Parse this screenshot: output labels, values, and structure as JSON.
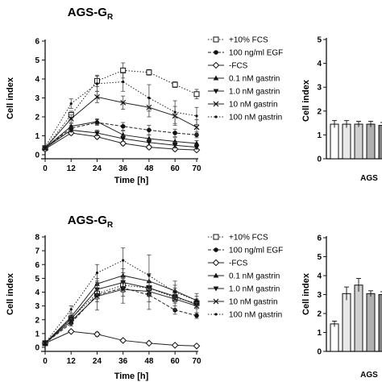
{
  "chart_data": [
    {
      "type": "line",
      "title": "AGS-G",
      "title_sub": "R",
      "xlabel": "Time [h]",
      "ylabel": "Cell index",
      "x": [
        0,
        12,
        24,
        36,
        48,
        60,
        70
      ],
      "xticks": [
        "0",
        "12",
        "24",
        "36",
        "48",
        "60",
        "70"
      ],
      "xlim": [
        0,
        70
      ],
      "ylim": [
        0,
        6
      ],
      "yticks": [
        "0",
        "1",
        "2",
        "3",
        "4",
        "5",
        "6"
      ],
      "legend_position": "top-right",
      "series": [
        {
          "name": "+10% FCS",
          "marker": "square-open",
          "line": "dotted",
          "values": [
            0.35,
            2.1,
            3.9,
            4.45,
            4.35,
            3.7,
            3.2
          ],
          "err": [
            0.05,
            0.2,
            0.3,
            0.4,
            0.15,
            0.15,
            0.25
          ]
        },
        {
          "name": "100 ng/ml EGF",
          "marker": "circle",
          "line": "dashed",
          "values": [
            0.35,
            1.4,
            1.7,
            1.5,
            1.3,
            1.15,
            1.05
          ],
          "err": [
            0.05,
            0.15,
            0.15,
            0.2,
            0.25,
            0.2,
            0.15
          ]
        },
        {
          "name": "-FCS",
          "marker": "diamond-open",
          "line": "solid",
          "values": [
            0.3,
            1.15,
            0.95,
            0.6,
            0.4,
            0.3,
            0.25
          ],
          "err": [
            0.05,
            0.1,
            0.1,
            0.1,
            0.1,
            0.1,
            0.05
          ]
        },
        {
          "name": "0.1 nM gastrin",
          "marker": "triangle-up",
          "line": "solid",
          "values": [
            0.35,
            1.5,
            1.75,
            1.05,
            0.85,
            0.7,
            0.6
          ],
          "err": [
            0.05,
            0.15,
            0.15,
            0.2,
            0.2,
            0.2,
            0.15
          ]
        },
        {
          "name": "1.0 nM gastrin",
          "marker": "triangle-down",
          "line": "solid",
          "values": [
            0.35,
            1.3,
            1.15,
            0.85,
            0.65,
            0.5,
            0.4
          ],
          "err": [
            0.05,
            0.1,
            0.15,
            0.15,
            0.15,
            0.15,
            0.1
          ]
        },
        {
          "name": "10 nM gastrin",
          "marker": "x",
          "line": "solid",
          "values": [
            0.35,
            1.9,
            3.05,
            2.75,
            2.5,
            2.05,
            1.45
          ],
          "err": [
            0.05,
            0.2,
            0.3,
            0.35,
            0.5,
            0.5,
            0.4
          ]
        },
        {
          "name": "100 nM gastrin",
          "marker": "dot",
          "line": "dotted",
          "values": [
            0.4,
            2.7,
            3.75,
            3.85,
            3.0,
            2.25,
            2.05
          ],
          "err": [
            0.05,
            0.25,
            0.4,
            0.5,
            0.7,
            0.6,
            0.45
          ]
        }
      ]
    },
    {
      "type": "bar",
      "title": "",
      "xlabel": "AGS",
      "ylabel": "Cell index",
      "ylim": [
        0,
        5
      ],
      "yticks": [
        "0",
        "1",
        "2",
        "3",
        "4",
        "5"
      ],
      "values": [
        1.45,
        1.45,
        1.45,
        1.45,
        1.4
      ],
      "err": [
        0.15,
        0.15,
        0.12,
        0.12,
        0.12
      ],
      "fills": [
        "#ffffff",
        "#e8e8e8",
        "#d0d0d0",
        "#b0b0b0",
        "#808080"
      ]
    },
    {
      "type": "line",
      "title": "AGS-G",
      "title_sub": "R",
      "xlabel": "Time [h]",
      "ylabel": "Cell index",
      "x": [
        0,
        12,
        24,
        36,
        48,
        60,
        70
      ],
      "xticks": [
        "0",
        "12",
        "24",
        "36",
        "48",
        "60",
        "70"
      ],
      "xlim": [
        0,
        70
      ],
      "ylim": [
        0,
        8
      ],
      "yticks": [
        "0",
        "1",
        "2",
        "3",
        "4",
        "5",
        "6",
        "7",
        "8"
      ],
      "legend_position": "top-right",
      "series": [
        {
          "name": "+10% FCS",
          "marker": "square-open",
          "line": "dotted",
          "values": [
            0.3,
            2.1,
            3.9,
            4.5,
            4.3,
            3.6,
            3.2
          ],
          "err": [
            0.05,
            0.2,
            0.4,
            0.5,
            0.4,
            0.3,
            0.3
          ]
        },
        {
          "name": "100 ng/ml EGF",
          "marker": "circle",
          "line": "dashed",
          "values": [
            0.3,
            1.75,
            3.8,
            4.3,
            3.8,
            2.7,
            2.3
          ],
          "err": [
            0.05,
            0.2,
            0.5,
            0.6,
            0.5,
            0.3,
            0.2
          ]
        },
        {
          "name": "-FCS",
          "marker": "diamond-open",
          "line": "solid",
          "values": [
            0.3,
            1.15,
            0.95,
            0.5,
            0.3,
            0.15,
            0.1
          ],
          "err": [
            0.05,
            0.1,
            0.15,
            0.1,
            0.05,
            0.05,
            0.05
          ]
        },
        {
          "name": "0.1 nM gastrin",
          "marker": "triangle-up",
          "line": "solid",
          "values": [
            0.3,
            2.2,
            4.6,
            5.2,
            4.8,
            4.1,
            3.4
          ],
          "err": [
            0.05,
            0.2,
            0.4,
            0.5,
            0.5,
            0.4,
            0.3
          ]
        },
        {
          "name": "1.0 nM gastrin",
          "marker": "triangle-down",
          "line": "solid",
          "values": [
            0.3,
            2.05,
            4.2,
            4.7,
            4.3,
            3.7,
            3.1
          ],
          "err": [
            0.05,
            0.2,
            0.4,
            0.5,
            0.5,
            0.4,
            0.3
          ]
        },
        {
          "name": "10 nM gastrin",
          "marker": "x",
          "line": "solid",
          "values": [
            0.3,
            1.9,
            3.7,
            4.2,
            4.05,
            3.5,
            3.0
          ],
          "err": [
            0.05,
            0.2,
            1.0,
            1.0,
            1.3,
            0.8,
            0.5
          ]
        },
        {
          "name": "100 nM gastrin",
          "marker": "dot",
          "line": "dotted",
          "values": [
            0.3,
            2.75,
            5.4,
            6.3,
            5.2,
            4.0,
            3.4
          ],
          "err": [
            0.05,
            0.25,
            0.6,
            0.9,
            1.5,
            0.8,
            0.5
          ]
        }
      ]
    },
    {
      "type": "bar",
      "title": "",
      "xlabel": "AGS",
      "ylabel": "Cell index",
      "ylim": [
        0,
        6
      ],
      "yticks": [
        "0",
        "1",
        "2",
        "3",
        "4",
        "5",
        "6"
      ],
      "values": [
        1.45,
        3.05,
        3.5,
        3.05,
        3.0
      ],
      "err": [
        0.15,
        0.35,
        0.35,
        0.15,
        0.15
      ],
      "fills": [
        "#ffffff",
        "#e8e8e8",
        "#d0d0d0",
        "#b0b0b0",
        "#808080"
      ]
    }
  ]
}
